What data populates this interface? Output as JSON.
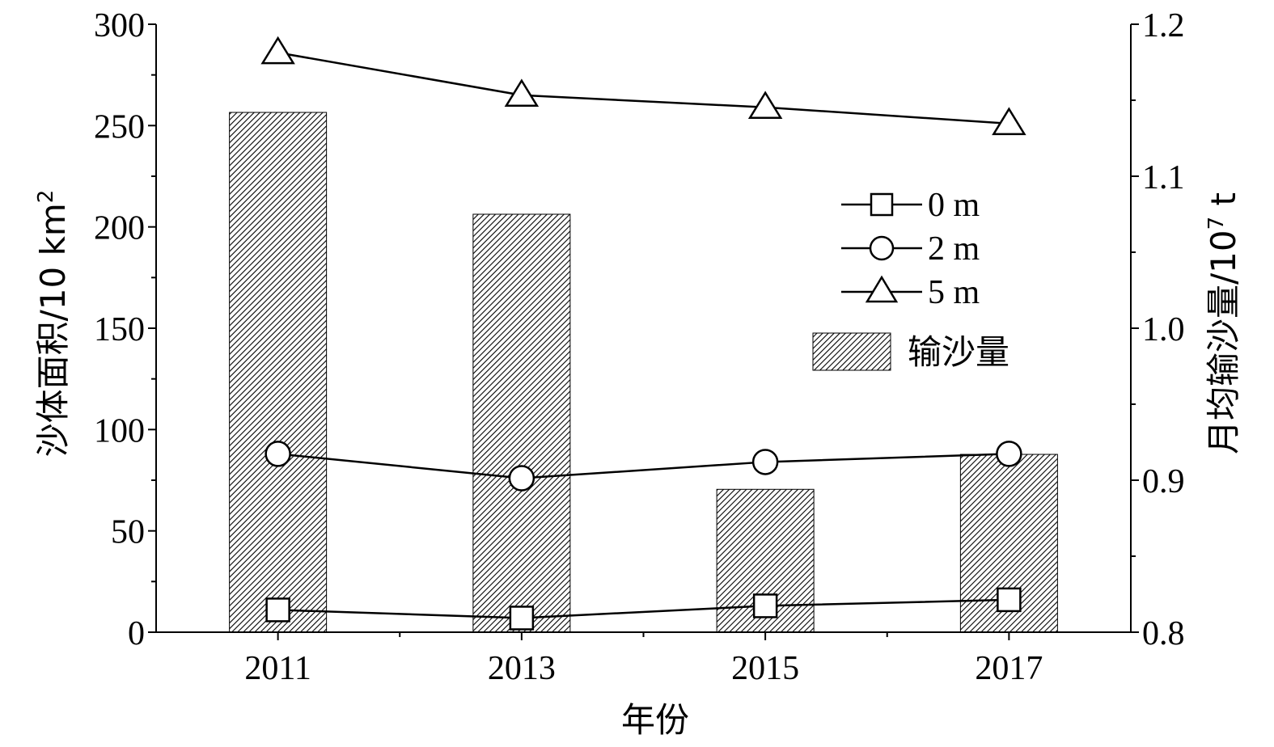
{
  "chart_data": {
    "type": "bar",
    "categories": [
      "2011",
      "2013",
      "2015",
      "2017"
    ],
    "bar_series": {
      "name": "输沙量",
      "axis": "right",
      "values": [
        1.142,
        1.075,
        0.894,
        0.917
      ]
    },
    "series": [
      {
        "name": "0 m",
        "marker": "square",
        "axis": "left",
        "values": [
          11,
          7,
          13,
          16
        ]
      },
      {
        "name": "2 m",
        "marker": "circle",
        "axis": "left",
        "values": [
          88,
          76,
          84,
          88
        ]
      },
      {
        "name": "5 m",
        "marker": "triangle",
        "axis": "left",
        "values": [
          286,
          265,
          259,
          251
        ]
      }
    ],
    "xlabel": "年份",
    "ylabel_left": {
      "main": "沙体面积/10 km",
      "superscript": "2"
    },
    "ylabel_right": {
      "main": "月均输沙量/10",
      "superscript": "7",
      "unit": " t"
    },
    "ylim_left": [
      0,
      300
    ],
    "yticks_left": [
      "0",
      "50",
      "100",
      "150",
      "200",
      "250",
      "300"
    ],
    "ylim_right": [
      0.8,
      1.2
    ],
    "yticks_right": [
      "0.8",
      "0.9",
      "1.0",
      "1.1",
      "1.2"
    ],
    "legend_position": "right-middle",
    "grid": false,
    "colors": {
      "bar_hatch": "#000000",
      "line": "#000000",
      "marker_fill": "#ffffff"
    }
  }
}
